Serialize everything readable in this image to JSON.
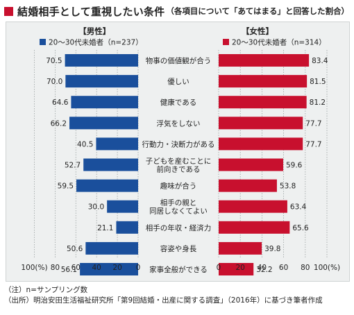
{
  "title": "結婚相手として重視したい条件",
  "subtitle": "（各項目について「あてはまる」と回答した割合）",
  "notes": [
    "（注）n=サンプリング数",
    "（出所）明治安田生活福祉研究所「第9回結婚・出産に関する調査」（2016年）に基づき筆者作成"
  ],
  "colors": {
    "male": "#1a4f9c",
    "female": "#c8102e",
    "accent": "#c8102e",
    "panel_bg": "#eef0f0"
  },
  "chart_data": {
    "type": "bar",
    "orientation": "horizontal-butterfly",
    "categories": [
      [
        "物事の価値観が合う"
      ],
      [
        "優しい"
      ],
      [
        "健康である"
      ],
      [
        "浮気をしない"
      ],
      [
        "行動力・決断力がある"
      ],
      [
        "子どもを産むことに",
        "前向きである"
      ],
      [
        "趣味が合う"
      ],
      [
        "相手の親と",
        "同居しなくてよい"
      ],
      [
        "相手の年収・経済力"
      ],
      [
        "容姿や身長"
      ],
      [
        "家事全般ができる"
      ]
    ],
    "series": [
      {
        "group": "【男性】",
        "name": "20～30代未婚者（n=237）",
        "values": [
          70.5,
          70.0,
          64.6,
          66.2,
          40.5,
          52.7,
          59.5,
          30.0,
          21.1,
          50.6,
          56.1
        ]
      },
      {
        "group": "【女性】",
        "name": "20～30代未婚者（n=314）",
        "values": [
          83.4,
          81.5,
          81.2,
          77.7,
          77.7,
          59.6,
          53.8,
          63.4,
          65.6,
          39.8,
          32.2
        ]
      }
    ],
    "xlim": [
      0,
      100
    ],
    "left_axis_ticks": [
      "100(%)",
      "80",
      "60",
      "40",
      "20",
      "0"
    ],
    "right_axis_ticks": [
      "0",
      "20",
      "40",
      "60",
      "80",
      "100(%)"
    ],
    "tick_values": [
      100,
      80,
      60,
      40,
      20,
      0
    ]
  }
}
